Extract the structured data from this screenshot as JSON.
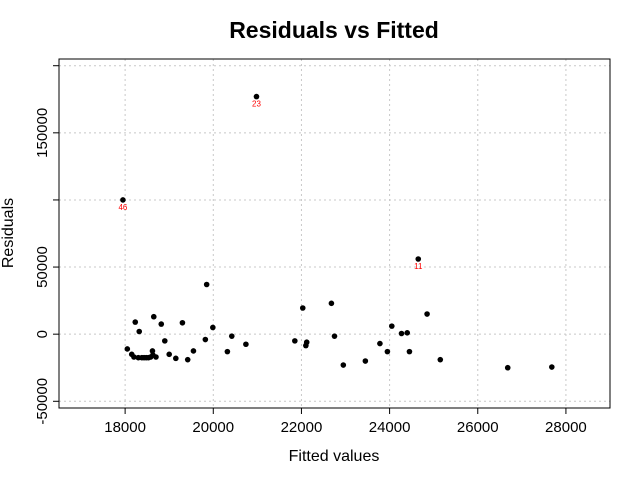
{
  "chart_data": {
    "type": "scatter",
    "title": "Residuals vs Fitted",
    "xlabel": "Fitted values",
    "ylabel": "Residuals",
    "xlim": [
      16500,
      29000
    ],
    "ylim": [
      -55000,
      205000
    ],
    "xticks": [
      18000,
      20000,
      22000,
      24000,
      26000,
      28000
    ],
    "xtick_labels": [
      "18000",
      "20000",
      "22000",
      "24000",
      "26000",
      "28000"
    ],
    "yticks": [
      -50000,
      0,
      50000,
      150000
    ],
    "ytick_labels": [
      "-50000",
      "0",
      "50000",
      "150000"
    ],
    "ytick_marks": [
      -50000,
      0,
      50000,
      100000,
      150000,
      200000
    ],
    "grid": true,
    "points": [
      {
        "x": 17950,
        "y": 100000,
        "label": "46"
      },
      {
        "x": 20980,
        "y": 177000,
        "label": "23"
      },
      {
        "x": 24650,
        "y": 56000,
        "label": "11"
      },
      {
        "x": 18050,
        "y": -11000
      },
      {
        "x": 18150,
        "y": -15000
      },
      {
        "x": 18200,
        "y": -17000
      },
      {
        "x": 18230,
        "y": 9000
      },
      {
        "x": 18300,
        "y": -17500
      },
      {
        "x": 18320,
        "y": 2000
      },
      {
        "x": 18380,
        "y": -17500
      },
      {
        "x": 18430,
        "y": -17500
      },
      {
        "x": 18480,
        "y": -17500
      },
      {
        "x": 18530,
        "y": -17500
      },
      {
        "x": 18580,
        "y": -17000
      },
      {
        "x": 18620,
        "y": -12500
      },
      {
        "x": 18630,
        "y": -15500
      },
      {
        "x": 18650,
        "y": 13000
      },
      {
        "x": 18700,
        "y": -17000
      },
      {
        "x": 18820,
        "y": 7500
      },
      {
        "x": 18900,
        "y": -5000
      },
      {
        "x": 19000,
        "y": -15000
      },
      {
        "x": 19150,
        "y": -18000
      },
      {
        "x": 19300,
        "y": 8500
      },
      {
        "x": 19420,
        "y": -19000
      },
      {
        "x": 19550,
        "y": -12500
      },
      {
        "x": 19820,
        "y": -4000
      },
      {
        "x": 19850,
        "y": 37000
      },
      {
        "x": 19990,
        "y": 5000
      },
      {
        "x": 20320,
        "y": -13000
      },
      {
        "x": 20420,
        "y": -1500
      },
      {
        "x": 20740,
        "y": -7500
      },
      {
        "x": 21850,
        "y": -5000
      },
      {
        "x": 22030,
        "y": 19500
      },
      {
        "x": 22100,
        "y": -8500
      },
      {
        "x": 22120,
        "y": -6000
      },
      {
        "x": 22680,
        "y": 23000
      },
      {
        "x": 22750,
        "y": -1500
      },
      {
        "x": 22950,
        "y": -23000
      },
      {
        "x": 23450,
        "y": -20000
      },
      {
        "x": 23780,
        "y": -7000
      },
      {
        "x": 23950,
        "y": -13000
      },
      {
        "x": 24050,
        "y": 6000
      },
      {
        "x": 24270,
        "y": 500
      },
      {
        "x": 24400,
        "y": 1000
      },
      {
        "x": 24450,
        "y": -13000
      },
      {
        "x": 24850,
        "y": 15000
      },
      {
        "x": 25150,
        "y": -19000
      },
      {
        "x": 26680,
        "y": -25000
      },
      {
        "x": 27680,
        "y": -24500
      }
    ]
  }
}
